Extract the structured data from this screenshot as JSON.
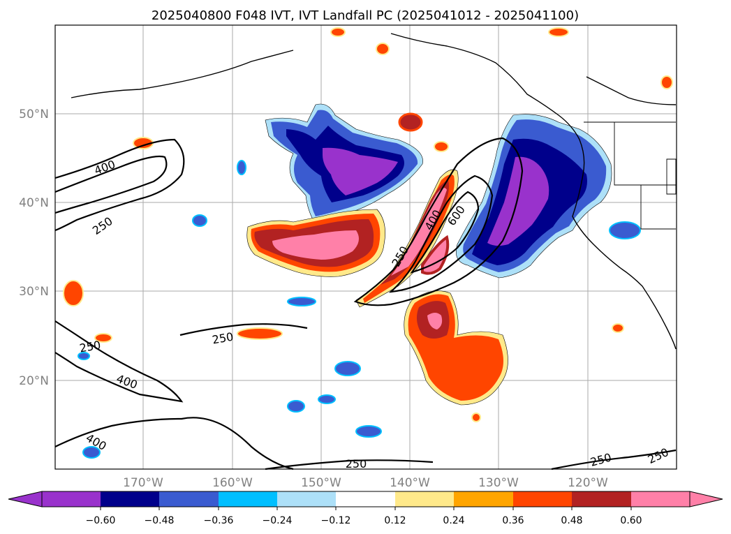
{
  "title": "2025040800 F048 IVT, IVT Landfall PC (2025041012 - 2025041100)",
  "map": {
    "lat_labels": [
      "50°N",
      "40°N",
      "30°N",
      "20°N"
    ],
    "lon_labels": [
      "170°W",
      "160°W",
      "150°W",
      "140°W",
      "130°W",
      "120°W"
    ],
    "contour_levels": [
      "250",
      "400",
      "600"
    ],
    "contour_labels": [
      "400",
      "250",
      "250",
      "400",
      "400",
      "250",
      "250",
      "400",
      "600",
      "250",
      "250",
      "250"
    ]
  },
  "colorbar": {
    "ticks": [
      "−0.60",
      "−0.48",
      "−0.36",
      "−0.24",
      "−0.12",
      "0.12",
      "0.24",
      "0.36",
      "0.48",
      "0.60"
    ],
    "colors": [
      "#9932CC",
      "#00008B",
      "#3A5BD0",
      "#00BFFF",
      "#ADE0F8",
      "#FFFFFF",
      "#FFE98A",
      "#FFA500",
      "#FF4500",
      "#B22222",
      "#FF80A8"
    ]
  }
}
